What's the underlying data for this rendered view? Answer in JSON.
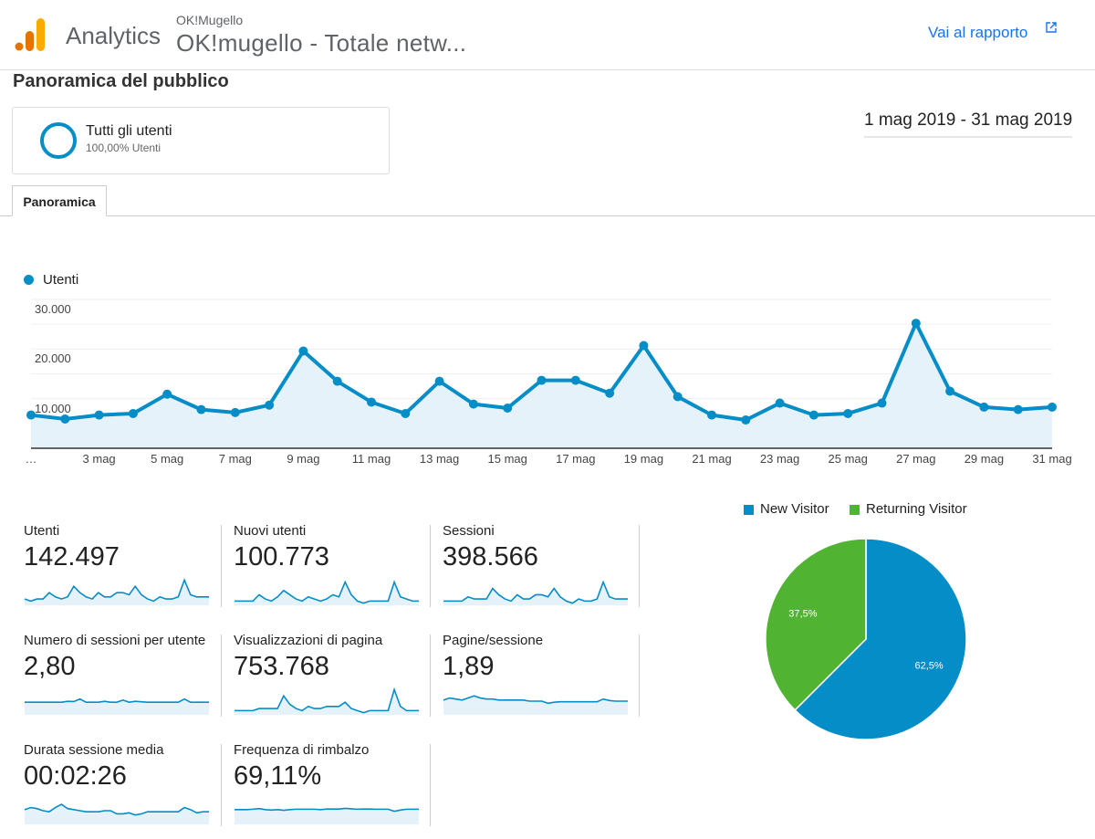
{
  "header": {
    "brand": "Analytics",
    "account": "OK!Mugello",
    "property": "OK!mugello - Totale netw...",
    "report_link": "Vai al rapporto",
    "report_icon": "open-in-new-icon",
    "logo_colors": [
      "#f9ab00",
      "#e37400"
    ]
  },
  "page": {
    "title": "Panoramica del pubblico",
    "date_range": "1 mag 2019 - 31 mag 2019"
  },
  "segment": {
    "name": "Tutti gli utenti",
    "sub": "100,00% Utenti",
    "color": "#058dc7"
  },
  "tabs": [
    {
      "label": "Panoramica",
      "active": true
    }
  ],
  "chart_data": [
    {
      "type": "area",
      "legend": [
        "Utenti"
      ],
      "legend_position": "top-left",
      "color": "#058dc7",
      "y_ticks": [
        "10.000",
        "20.000",
        "30.000"
      ],
      "ylim": [
        0,
        30000
      ],
      "grid": true,
      "x_ticks": [
        "…",
        "3 mag",
        "5 mag",
        "7 mag",
        "9 mag",
        "11 mag",
        "13 mag",
        "15 mag",
        "17 mag",
        "19 mag",
        "21 mag",
        "23 mag",
        "25 mag",
        "27 mag",
        "29 mag",
        "31 mag"
      ],
      "x": [
        1,
        2,
        3,
        4,
        5,
        6,
        7,
        8,
        9,
        10,
        11,
        12,
        13,
        14,
        15,
        16,
        17,
        18,
        19,
        20,
        21,
        22,
        23,
        24,
        25,
        26,
        27,
        28,
        29,
        30,
        31
      ],
      "series": [
        {
          "name": "Utenti",
          "values": [
            6700,
            5900,
            6700,
            7000,
            10900,
            7800,
            7200,
            8700,
            19600,
            13500,
            9300,
            7000,
            13500,
            8900,
            8100,
            13700,
            13700,
            11100,
            20700,
            10400,
            6700,
            5700,
            9100,
            6700,
            7000,
            9100,
            25200,
            11500,
            8300,
            7800,
            8300
          ]
        }
      ]
    },
    {
      "type": "pie",
      "legend": [
        "New Visitor",
        "Returning Visitor"
      ],
      "legend_position": "top",
      "values": [
        62.5,
        37.5
      ],
      "labels": [
        "62,5%",
        "37,5%"
      ],
      "colors": [
        "#058dc7",
        "#50b432"
      ]
    }
  ],
  "metrics": [
    {
      "label": "Utenti",
      "value": "142.497",
      "spark": [
        3,
        2,
        3,
        3,
        6,
        4,
        3,
        4,
        9,
        6,
        4,
        3,
        6,
        4,
        4,
        6,
        6,
        5,
        9,
        5,
        3,
        2,
        4,
        3,
        3,
        4,
        12,
        5,
        4,
        4,
        4
      ]
    },
    {
      "label": "Nuovi utenti",
      "value": "100.773",
      "spark": [
        2,
        2,
        2,
        2,
        5,
        3,
        2,
        4,
        7,
        5,
        3,
        2,
        4,
        3,
        2,
        3,
        5,
        4,
        11,
        5,
        2,
        1,
        2,
        2,
        2,
        2,
        11,
        4,
        3,
        2,
        2
      ]
    },
    {
      "label": "Sessioni",
      "value": "398.566",
      "spark": [
        2,
        2,
        2,
        2,
        4,
        3,
        3,
        3,
        8,
        5,
        3,
        2,
        5,
        3,
        3,
        5,
        5,
        4,
        8,
        4,
        2,
        1,
        3,
        2,
        2,
        3,
        11,
        4,
        3,
        3,
        3
      ]
    },
    {
      "label": "Numero di sessioni per utente",
      "value": "2,80",
      "spark": [
        6,
        6,
        6,
        6,
        6,
        6,
        6,
        6.4,
        6.3,
        7.5,
        6,
        6,
        6,
        6.4,
        6,
        6,
        7,
        6,
        6.4,
        6.2,
        6,
        6,
        6,
        6,
        6,
        6,
        7.5,
        6,
        6,
        6,
        6
      ]
    },
    {
      "label": "Visualizzazioni di pagina",
      "value": "753.768",
      "spark": [
        2,
        2,
        2,
        2,
        3,
        3,
        3,
        3,
        9,
        5,
        3,
        2,
        4,
        3,
        3,
        4,
        4,
        4,
        6,
        3,
        2,
        1,
        2,
        2,
        2,
        2,
        12,
        4,
        2,
        2,
        2
      ]
    },
    {
      "label": "Pagine/sessione",
      "value": "1,89",
      "spark": [
        7,
        8,
        7.5,
        7,
        8,
        9,
        8,
        7.5,
        7.5,
        7,
        7,
        7,
        7,
        7,
        6.5,
        6.5,
        6.5,
        5.5,
        6,
        6.2,
        6.2,
        6.2,
        6.2,
        6.2,
        6.2,
        6.2,
        7.5,
        6.8,
        6.5,
        6.5,
        6.5
      ]
    },
    {
      "label": "Durata sessione media",
      "value": "00:02:26",
      "spark": [
        7,
        8,
        7.5,
        6.5,
        6,
        8,
        9.5,
        7.5,
        7,
        6.5,
        6,
        6,
        6,
        6.5,
        6.5,
        5,
        5,
        5.5,
        4.5,
        5,
        6,
        6,
        6,
        6,
        6,
        6,
        8,
        7,
        5.5,
        6,
        6
      ]
    },
    {
      "label": "Frequenza di rimbalzo",
      "value": "69,11%",
      "spark": [
        7,
        7,
        7,
        7.2,
        7.5,
        7,
        6.8,
        7,
        6.7,
        7,
        7.2,
        7.2,
        7.2,
        7.2,
        7,
        7.3,
        7.3,
        7.3,
        7.6,
        7.4,
        7.2,
        7.3,
        7.3,
        7.2,
        7.2,
        7.2,
        6.2,
        6.8,
        7.2,
        7.2,
        7.2
      ]
    }
  ]
}
